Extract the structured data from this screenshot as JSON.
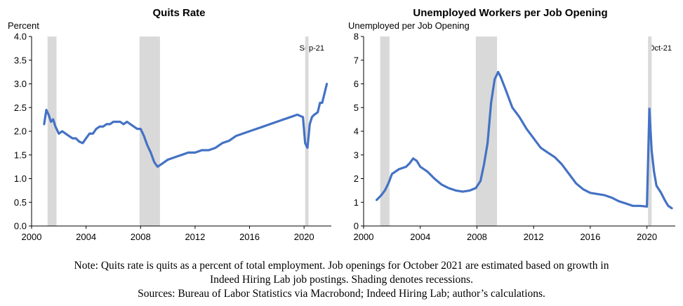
{
  "colors": {
    "line": "#4472C4",
    "recession": "#D9D9D9",
    "axis": "#000000"
  },
  "chart_data": [
    {
      "type": "line",
      "title": "Quits Rate",
      "ylabel": "Percent",
      "xlabel": "",
      "xlim": [
        2000,
        2022
      ],
      "ylim": [
        0,
        4.0
      ],
      "x_ticks": [
        2000,
        2004,
        2008,
        2012,
        2016,
        2020
      ],
      "x_tick_labels": [
        "2000",
        "2004",
        "2008",
        "2012",
        "2016",
        "2020"
      ],
      "y_ticks": [
        0,
        0.5,
        1.0,
        1.5,
        2.0,
        2.5,
        3.0,
        3.5,
        4.0
      ],
      "y_tick_labels": [
        "0.0",
        "0.5",
        "1.0",
        "1.5",
        "2.0",
        "2.5",
        "3.0",
        "3.5",
        "4.0"
      ],
      "annotation": "Sep-21",
      "grid": false,
      "recessions": [
        [
          2001.17,
          2001.83
        ],
        [
          2007.92,
          2009.42
        ],
        [
          2020.08,
          2020.33
        ]
      ],
      "series": [
        {
          "x": [
            2000.92,
            2001.08,
            2001.25,
            2001.42,
            2001.58,
            2001.75,
            2002.0,
            2002.25,
            2002.5,
            2002.75,
            2003.0,
            2003.25,
            2003.5,
            2003.75,
            2004.0,
            2004.25,
            2004.5,
            2004.75,
            2005.0,
            2005.25,
            2005.5,
            2005.75,
            2006.0,
            2006.25,
            2006.5,
            2006.75,
            2007.0,
            2007.25,
            2007.5,
            2007.75,
            2008.0,
            2008.25,
            2008.5,
            2008.75,
            2009.0,
            2009.25,
            2009.5,
            2009.75,
            2010.0,
            2010.5,
            2011.0,
            2011.5,
            2012.0,
            2012.5,
            2013.0,
            2013.5,
            2014.0,
            2014.5,
            2015.0,
            2015.5,
            2016.0,
            2016.5,
            2017.0,
            2017.5,
            2018.0,
            2018.5,
            2019.0,
            2019.5,
            2019.92,
            2020.08,
            2020.25,
            2020.42,
            2020.58,
            2020.75,
            2021.0,
            2021.17,
            2021.33,
            2021.5,
            2021.67
          ],
          "y": [
            2.15,
            2.45,
            2.35,
            2.2,
            2.25,
            2.1,
            1.95,
            2.0,
            1.95,
            1.9,
            1.85,
            1.85,
            1.78,
            1.75,
            1.85,
            1.95,
            1.95,
            2.05,
            2.1,
            2.1,
            2.15,
            2.15,
            2.2,
            2.2,
            2.2,
            2.15,
            2.2,
            2.15,
            2.1,
            2.05,
            2.05,
            1.9,
            1.7,
            1.55,
            1.35,
            1.25,
            1.3,
            1.35,
            1.4,
            1.45,
            1.5,
            1.55,
            1.55,
            1.6,
            1.6,
            1.65,
            1.75,
            1.8,
            1.9,
            1.95,
            2.0,
            2.05,
            2.1,
            2.15,
            2.2,
            2.25,
            2.3,
            2.35,
            2.3,
            1.75,
            1.65,
            2.15,
            2.3,
            2.35,
            2.4,
            2.6,
            2.6,
            2.8,
            3.0
          ]
        }
      ]
    },
    {
      "type": "line",
      "title": "Unemployed Workers per Job Opening",
      "ylabel": "Unemployed per Job Opening",
      "xlabel": "",
      "xlim": [
        2000,
        2022
      ],
      "ylim": [
        0,
        8
      ],
      "x_ticks": [
        2000,
        2004,
        2008,
        2012,
        2016,
        2020
      ],
      "x_tick_labels": [
        "2000",
        "2004",
        "2008",
        "2012",
        "2016",
        "2020"
      ],
      "y_ticks": [
        0,
        1,
        2,
        3,
        4,
        5,
        6,
        7,
        8
      ],
      "y_tick_labels": [
        "0",
        "1",
        "2",
        "3",
        "4",
        "5",
        "6",
        "7",
        "8"
      ],
      "annotation": "Oct-21",
      "grid": false,
      "recessions": [
        [
          2001.17,
          2001.83
        ],
        [
          2007.92,
          2009.42
        ],
        [
          2020.08,
          2020.33
        ]
      ],
      "series": [
        {
          "x": [
            2000.92,
            2001.25,
            2001.5,
            2001.75,
            2002.0,
            2002.5,
            2003.0,
            2003.25,
            2003.5,
            2003.75,
            2004.0,
            2004.5,
            2005.0,
            2005.5,
            2006.0,
            2006.5,
            2007.0,
            2007.5,
            2007.92,
            2008.25,
            2008.5,
            2008.75,
            2009.0,
            2009.25,
            2009.5,
            2009.67,
            2010.0,
            2010.5,
            2011.0,
            2011.5,
            2012.0,
            2012.5,
            2013.0,
            2013.5,
            2014.0,
            2014.5,
            2015.0,
            2015.5,
            2016.0,
            2016.5,
            2017.0,
            2017.5,
            2018.0,
            2018.5,
            2019.0,
            2019.5,
            2020.0,
            2020.17,
            2020.33,
            2020.5,
            2020.67,
            2021.0,
            2021.25,
            2021.5,
            2021.75
          ],
          "y": [
            1.1,
            1.3,
            1.5,
            1.8,
            2.2,
            2.4,
            2.5,
            2.65,
            2.85,
            2.75,
            2.5,
            2.3,
            2.0,
            1.75,
            1.6,
            1.5,
            1.45,
            1.5,
            1.6,
            1.9,
            2.6,
            3.5,
            5.2,
            6.2,
            6.5,
            6.3,
            5.8,
            5.0,
            4.6,
            4.1,
            3.7,
            3.3,
            3.1,
            2.9,
            2.6,
            2.2,
            1.8,
            1.55,
            1.4,
            1.35,
            1.3,
            1.2,
            1.05,
            0.95,
            0.85,
            0.85,
            0.82,
            4.95,
            3.2,
            2.3,
            1.7,
            1.4,
            1.1,
            0.85,
            0.75
          ]
        }
      ]
    }
  ],
  "note_lines": [
    "Note: Quits rate is quits as a percent of total employment. Job openings for October 2021 are estimated based on growth in",
    "Indeed Hiring Lab job postings. Shading denotes recessions.",
    "Sources: Bureau of Labor Statistics via Macrobond; Indeed Hiring Lab; author’s calculations."
  ]
}
